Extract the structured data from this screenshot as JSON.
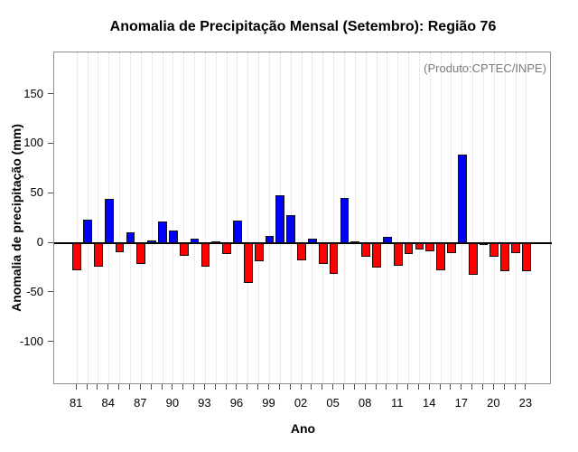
{
  "chart_data": {
    "type": "bar",
    "title": "Anomalia de Precipitação Mensal (Setembro): Região 76",
    "annotation": "(Produto:CPTEC/INPE)",
    "xlabel": "Ano",
    "ylabel": "Anomalia de precipitação (mm)",
    "years": [
      1981,
      1982,
      1983,
      1984,
      1985,
      1986,
      1987,
      1988,
      1989,
      1990,
      1991,
      1992,
      1993,
      1994,
      1995,
      1996,
      1997,
      1998,
      1999,
      2000,
      2001,
      2002,
      2003,
      2004,
      2005,
      2006,
      2007,
      2008,
      2009,
      2010,
      2011,
      2012,
      2013,
      2014,
      2015,
      2016,
      2017,
      2018,
      2019,
      2020,
      2021,
      2022,
      2023
    ],
    "values": [
      -27,
      24,
      -24,
      45,
      -9,
      11,
      -21,
      3,
      22,
      13,
      -13,
      5,
      -24,
      2,
      -11,
      23,
      -40,
      -18,
      7,
      48,
      28,
      -17,
      5,
      -21,
      -31,
      46,
      2,
      -14,
      -25,
      6,
      -23,
      -11,
      -6,
      -8,
      -27,
      -10,
      89,
      -32,
      -2,
      -14,
      -28,
      -10,
      -28
    ],
    "x_tick_labels": [
      "81",
      "84",
      "87",
      "90",
      "93",
      "96",
      "99",
      "02",
      "05",
      "08",
      "11",
      "14",
      "17",
      "20",
      "23"
    ],
    "x_tick_every": 3,
    "y_ticks": [
      150,
      100,
      50,
      0,
      -50,
      -100
    ],
    "ylim": [
      -142,
      188
    ],
    "grid": "vertical-dotted",
    "legend_position": "none",
    "colors": {
      "positive_bar": "#0000ff",
      "negative_bar": "#ff0000",
      "bar_border": "#111111",
      "annotation_text": "#7b7b7b",
      "zero_line": "#000000"
    }
  }
}
